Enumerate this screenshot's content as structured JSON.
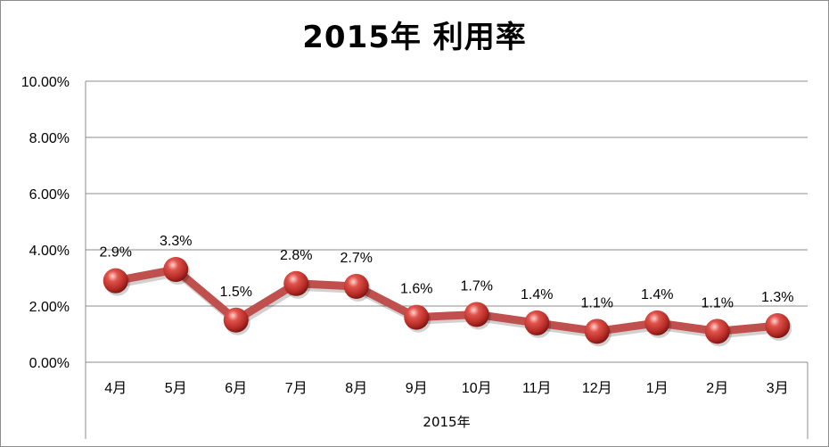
{
  "chart_data": {
    "type": "line",
    "title": "2015年 利用率",
    "categories": [
      "4月",
      "5月",
      "6月",
      "7月",
      "8月",
      "9月",
      "10月",
      "11月",
      "12月",
      "1月",
      "2月",
      "3月"
    ],
    "group_label": "2015年",
    "series": [
      {
        "values": [
          2.9,
          3.3,
          1.5,
          2.8,
          2.7,
          1.6,
          1.7,
          1.4,
          1.1,
          1.4,
          1.1,
          1.3
        ],
        "data_labels": [
          "2.9%",
          "3.3%",
          "1.5%",
          "2.8%",
          "2.7%",
          "1.6%",
          "1.7%",
          "1.4%",
          "1.1%",
          "1.4%",
          "1.1%",
          "1.3%"
        ],
        "color": "#c0504d"
      }
    ],
    "yticks": [
      "0.00%",
      "2.00%",
      "4.00%",
      "6.00%",
      "8.00%",
      "10.00%"
    ],
    "ylim": [
      0,
      10
    ],
    "grid": true,
    "legend": "none"
  }
}
